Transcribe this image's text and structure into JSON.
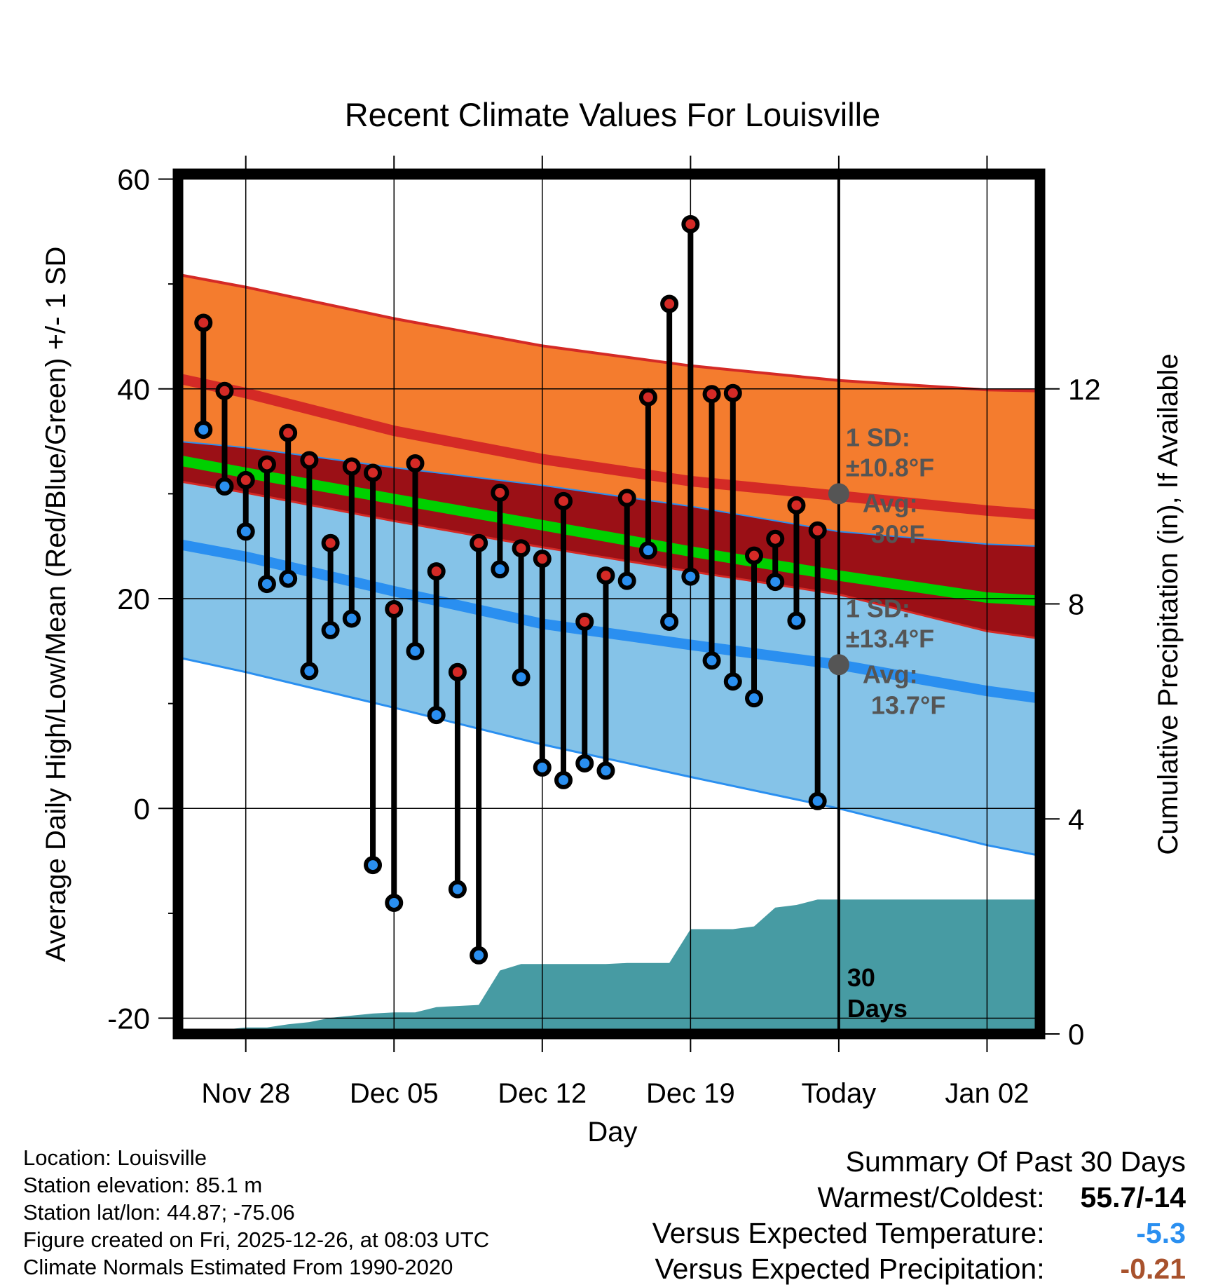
{
  "chart_data": {
    "type": "line",
    "title": "Recent Climate Values For Louisville",
    "xlabel": "Day",
    "ylabel": "Average Daily High/Low/Mean (Red/Blue/Green) +/- 1 SD",
    "y2label": "Cumulative Precipitation (in), If Available",
    "ylim": [
      -21.5,
      60.5
    ],
    "y2lim": [
      0,
      16
    ],
    "yticks": [
      -20,
      0,
      20,
      40,
      60
    ],
    "y2ticks": [
      0,
      4,
      8,
      12
    ],
    "xlim": [
      -3.2,
      37.5
    ],
    "x_ticks": [
      {
        "day": 0,
        "label": "Nov 28"
      },
      {
        "day": 7,
        "label": "Dec 05"
      },
      {
        "day": 14,
        "label": "Dec 12"
      },
      {
        "day": 21,
        "label": "Dec 19"
      },
      {
        "day": 28,
        "label": "Today"
      },
      {
        "day": 35,
        "label": "Jan 02"
      }
    ],
    "today_marker": {
      "day": 28,
      "label": "30 Days"
    },
    "normals": {
      "days": [
        -3.2,
        0,
        7,
        14,
        21,
        28,
        35,
        37.5
      ],
      "high_upper": [
        50.9,
        49.7,
        46.7,
        44.1,
        42.2,
        40.8,
        39.9,
        39.8
      ],
      "high_mean": [
        41.0,
        39.6,
        36.0,
        33.3,
        31.2,
        29.8,
        28.4,
        28.0
      ],
      "high_lower": [
        35.0,
        34.4,
        32.5,
        30.8,
        28.8,
        26.4,
        25.2,
        25.0
      ],
      "mean": [
        33.2,
        32.0,
        29.5,
        27.0,
        24.5,
        22.2,
        20.1,
        19.8
      ],
      "low_upper": [
        31.2,
        30.1,
        27.4,
        24.9,
        22.6,
        20.4,
        16.9,
        16.2
      ],
      "low_mean": [
        25.2,
        24.0,
        20.7,
        17.6,
        15.6,
        13.7,
        11.2,
        10.5
      ],
      "low_lower": [
        14.4,
        13.0,
        9.6,
        6.1,
        3.0,
        0.0,
        -3.5,
        -4.5
      ],
      "annotations": [
        {
          "day": 28,
          "value": 30,
          "lines": [
            "1 SD:",
            "±10.8°F",
            "Avg:",
            "30°F"
          ]
        },
        {
          "day": 28,
          "value": 13.7,
          "lines": [
            "1 SD:",
            "±13.4°F",
            "Avg:",
            "13.7°F"
          ]
        }
      ]
    },
    "observations": {
      "days": [
        -2,
        -1,
        0,
        1,
        2,
        3,
        4,
        5,
        6,
        7,
        8,
        9,
        10,
        11,
        12,
        13,
        14,
        15,
        16,
        17,
        18,
        19,
        20,
        21,
        22,
        23,
        24,
        25,
        26,
        27
      ],
      "highs": [
        46.3,
        39.8,
        31.3,
        32.8,
        35.8,
        33.2,
        25.3,
        32.6,
        32.0,
        19.0,
        32.9,
        22.6,
        13.0,
        25.3,
        30.1,
        24.8,
        23.8,
        29.3,
        17.8,
        22.2,
        29.6,
        39.2,
        48.1,
        55.7,
        39.5,
        39.6,
        24.1,
        25.7,
        28.9,
        26.5
      ],
      "lows": [
        36.1,
        30.7,
        26.4,
        21.4,
        21.9,
        13.1,
        17.0,
        18.1,
        -5.4,
        -9.0,
        15.0,
        8.9,
        -7.7,
        -14.0,
        22.8,
        12.5,
        3.9,
        2.7,
        4.3,
        3.6,
        21.7,
        24.6,
        17.8,
        22.1,
        14.1,
        12.1,
        10.5,
        21.6,
        17.9,
        0.7
      ]
    },
    "precipitation": {
      "days": [
        -3.2,
        -2,
        -1,
        0,
        1,
        2,
        3,
        4,
        5,
        6,
        7,
        8,
        9,
        10,
        11,
        12,
        13,
        14,
        15,
        16,
        17,
        18,
        19,
        20,
        21,
        22,
        23,
        24,
        25,
        26,
        27,
        28,
        37.5
      ],
      "cumulative_in": [
        0.0,
        0.0,
        0.08,
        0.12,
        0.12,
        0.18,
        0.22,
        0.3,
        0.34,
        0.38,
        0.4,
        0.4,
        0.5,
        0.52,
        0.54,
        1.18,
        1.3,
        1.3,
        1.3,
        1.3,
        1.3,
        1.32,
        1.32,
        1.32,
        1.95,
        1.95,
        1.95,
        2.0,
        2.35,
        2.4,
        2.5,
        2.5,
        2.5
      ]
    }
  },
  "footer": {
    "location": "Location: Louisville",
    "elevation": "Station elevation: 85.1 m",
    "latlon": "Station lat/lon: 44.87; -75.06",
    "created": "Figure created on Fri, 2025-12-26, at 08:03 UTC",
    "normals_period": "Climate Normals Estimated From 1990-2020"
  },
  "summary": {
    "heading": "Summary Of Past 30 Days",
    "warm_cold_label": "Warmest/Coldest:",
    "warm_cold_value": "55.7/-14",
    "temp_label": "Versus Expected Temperature:",
    "temp_value": "-5.3",
    "precip_label": "Versus Expected Precipitation:",
    "precip_value": "-0.21"
  },
  "colors": {
    "high_band": "#f47c2e",
    "high_line": "#d42a26",
    "mid_band": "#9b1016",
    "mean_line": "#00d000",
    "low_band": "#85c3e8",
    "low_line": "#2a8ff0",
    "precip": "#479ba3",
    "annotation": "#555555",
    "high_dot": "#d42a26",
    "low_dot": "#2a8ff0"
  }
}
